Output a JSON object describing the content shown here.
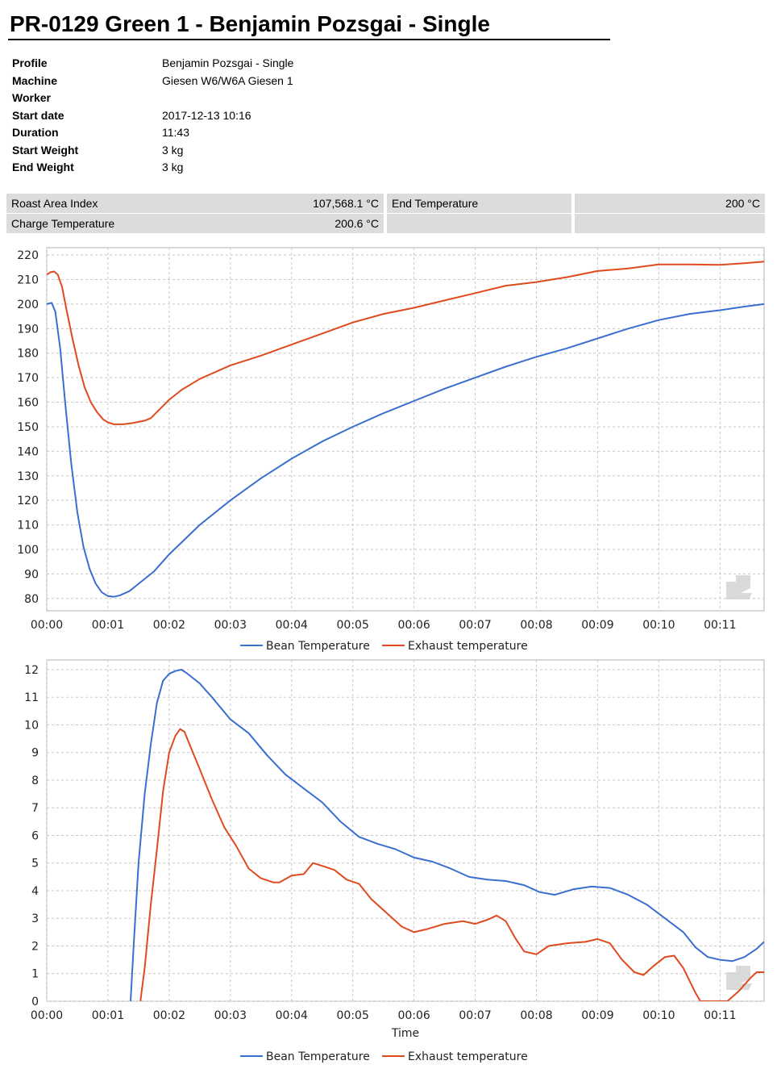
{
  "report": {
    "title": "PR-0129 Green 1 - Benjamin Pozsgai - Single",
    "meta": [
      {
        "key": "Profile",
        "value": "Benjamin Pozsgai - Single"
      },
      {
        "key": "Machine",
        "value": "Giesen W6/W6A Giesen 1"
      },
      {
        "key": "Worker",
        "value": ""
      },
      {
        "key": "Start date",
        "value": "2017-12-13 10:16"
      },
      {
        "key": "Duration",
        "value": "11:43"
      },
      {
        "key": "Start Weight",
        "value": "3 kg"
      },
      {
        "key": "End Weight",
        "value": "3 kg"
      }
    ],
    "stats": {
      "roast_area_index_label": "Roast Area Index",
      "roast_area_index_value": "107,568.1 °C",
      "end_temperature_label": "End Temperature",
      "end_temperature_value": "200 °C",
      "charge_temperature_label": "Charge Temperature",
      "charge_temperature_value": "200.6 °C"
    }
  },
  "colors": {
    "bean": "#3a6fd0",
    "exhaust": "#e04a1f",
    "grid": "#c8c8c8"
  },
  "watermark_icon": "roaster-logo-icon",
  "chart_data": [
    {
      "type": "line",
      "xlabel": "",
      "ylabel": "",
      "xlim": [
        0,
        11.72
      ],
      "ylim": [
        75,
        223
      ],
      "x_ticks": [
        0,
        1,
        2,
        3,
        4,
        5,
        6,
        7,
        8,
        9,
        10,
        11
      ],
      "x_tick_labels": [
        "00:00",
        "00:01",
        "00:02",
        "00:03",
        "00:04",
        "00:05",
        "00:06",
        "00:07",
        "00:08",
        "00:09",
        "00:10",
        "00:11"
      ],
      "y_ticks": [
        80,
        90,
        100,
        110,
        120,
        130,
        140,
        150,
        160,
        170,
        180,
        190,
        200,
        210,
        220
      ],
      "grid": true,
      "legend": "bottom-center",
      "series": [
        {
          "name": "Bean Temperature",
          "color_key": "bean",
          "points": [
            [
              0,
              200
            ],
            [
              0.08,
              200.5
            ],
            [
              0.14,
              197
            ],
            [
              0.22,
              182
            ],
            [
              0.3,
              160
            ],
            [
              0.4,
              135
            ],
            [
              0.5,
              115
            ],
            [
              0.6,
              101
            ],
            [
              0.7,
              92
            ],
            [
              0.8,
              86
            ],
            [
              0.9,
              82.5
            ],
            [
              1.0,
              81
            ],
            [
              1.1,
              80.7
            ],
            [
              1.2,
              81.3
            ],
            [
              1.35,
              83
            ],
            [
              1.5,
              86
            ],
            [
              1.75,
              91
            ],
            [
              2.0,
              98
            ],
            [
              2.5,
              110
            ],
            [
              3.0,
              120
            ],
            [
              3.5,
              129
            ],
            [
              4.0,
              137
            ],
            [
              4.5,
              144
            ],
            [
              5.0,
              150
            ],
            [
              5.5,
              155.5
            ],
            [
              6.0,
              160.5
            ],
            [
              6.5,
              165.5
            ],
            [
              7.0,
              170
            ],
            [
              7.5,
              174.5
            ],
            [
              8.0,
              178.5
            ],
            [
              8.5,
              182
            ],
            [
              9.0,
              186
            ],
            [
              9.5,
              190
            ],
            [
              10.0,
              193.5
            ],
            [
              10.5,
              196
            ],
            [
              11.0,
              197.5
            ],
            [
              11.4,
              199
            ],
            [
              11.72,
              200
            ]
          ]
        },
        {
          "name": "Exhaust temperature",
          "color_key": "exhaust",
          "points": [
            [
              0,
              212
            ],
            [
              0.06,
              213
            ],
            [
              0.12,
              213.3
            ],
            [
              0.18,
              212
            ],
            [
              0.25,
              207
            ],
            [
              0.32,
              198
            ],
            [
              0.42,
              186
            ],
            [
              0.52,
              175
            ],
            [
              0.62,
              166
            ],
            [
              0.72,
              160
            ],
            [
              0.82,
              156
            ],
            [
              0.92,
              153
            ],
            [
              1.0,
              151.8
            ],
            [
              1.1,
              151
            ],
            [
              1.25,
              151
            ],
            [
              1.4,
              151.5
            ],
            [
              1.6,
              152.5
            ],
            [
              1.7,
              153.5
            ],
            [
              1.8,
              156
            ],
            [
              2.0,
              161
            ],
            [
              2.2,
              165
            ],
            [
              2.5,
              169.5
            ],
            [
              3.0,
              175
            ],
            [
              3.5,
              179
            ],
            [
              4.0,
              183.5
            ],
            [
              4.5,
              188
            ],
            [
              5.0,
              192.5
            ],
            [
              5.5,
              196
            ],
            [
              6.0,
              198.5
            ],
            [
              6.5,
              201.5
            ],
            [
              7.0,
              204.5
            ],
            [
              7.5,
              207.5
            ],
            [
              8.0,
              209
            ],
            [
              8.5,
              211
            ],
            [
              9.0,
              213.5
            ],
            [
              9.5,
              214.5
            ],
            [
              10.0,
              216.2
            ],
            [
              10.5,
              216.2
            ],
            [
              11.0,
              216
            ],
            [
              11.4,
              216.7
            ],
            [
              11.72,
              217.3
            ]
          ]
        }
      ]
    },
    {
      "type": "line",
      "xlabel": "Time",
      "ylabel": "",
      "xlim": [
        0,
        11.72
      ],
      "ylim": [
        0,
        12.35
      ],
      "x_ticks": [
        0,
        1,
        2,
        3,
        4,
        5,
        6,
        7,
        8,
        9,
        10,
        11
      ],
      "x_tick_labels": [
        "00:00",
        "00:01",
        "00:02",
        "00:03",
        "00:04",
        "00:05",
        "00:06",
        "00:07",
        "00:08",
        "00:09",
        "00:10",
        "00:11"
      ],
      "y_ticks": [
        0,
        1,
        2,
        3,
        4,
        5,
        6,
        7,
        8,
        9,
        10,
        11,
        12
      ],
      "grid": true,
      "legend": "bottom-center",
      "series": [
        {
          "name": "Bean Temperature",
          "color_key": "bean",
          "points": [
            [
              1.37,
              0
            ],
            [
              1.42,
              2
            ],
            [
              1.5,
              5
            ],
            [
              1.6,
              7.5
            ],
            [
              1.7,
              9.3
            ],
            [
              1.8,
              10.8
            ],
            [
              1.9,
              11.6
            ],
            [
              2.0,
              11.85
            ],
            [
              2.1,
              11.95
            ],
            [
              2.2,
              12.0
            ],
            [
              2.3,
              11.85
            ],
            [
              2.5,
              11.5
            ],
            [
              2.7,
              11.0
            ],
            [
              3.0,
              10.2
            ],
            [
              3.3,
              9.7
            ],
            [
              3.6,
              8.9
            ],
            [
              3.9,
              8.2
            ],
            [
              4.2,
              7.7
            ],
            [
              4.5,
              7.2
            ],
            [
              4.8,
              6.5
            ],
            [
              5.1,
              5.95
            ],
            [
              5.4,
              5.7
            ],
            [
              5.7,
              5.5
            ],
            [
              6.0,
              5.2
            ],
            [
              6.3,
              5.05
            ],
            [
              6.6,
              4.8
            ],
            [
              6.9,
              4.5
            ],
            [
              7.2,
              4.4
            ],
            [
              7.5,
              4.35
            ],
            [
              7.8,
              4.2
            ],
            [
              8.05,
              3.95
            ],
            [
              8.3,
              3.85
            ],
            [
              8.6,
              4.05
            ],
            [
              8.9,
              4.15
            ],
            [
              9.2,
              4.1
            ],
            [
              9.5,
              3.85
            ],
            [
              9.8,
              3.5
            ],
            [
              10.1,
              3.0
            ],
            [
              10.4,
              2.5
            ],
            [
              10.6,
              1.95
            ],
            [
              10.8,
              1.6
            ],
            [
              11.0,
              1.5
            ],
            [
              11.2,
              1.45
            ],
            [
              11.4,
              1.6
            ],
            [
              11.6,
              1.9
            ],
            [
              11.72,
              2.15
            ]
          ]
        },
        {
          "name": "Exhaust temperature",
          "color_key": "exhaust",
          "points": [
            [
              1.53,
              0
            ],
            [
              1.6,
              1.2
            ],
            [
              1.7,
              3.5
            ],
            [
              1.8,
              5.5
            ],
            [
              1.9,
              7.6
            ],
            [
              2.0,
              9.0
            ],
            [
              2.1,
              9.6
            ],
            [
              2.18,
              9.85
            ],
            [
              2.25,
              9.75
            ],
            [
              2.35,
              9.2
            ],
            [
              2.5,
              8.4
            ],
            [
              2.7,
              7.3
            ],
            [
              2.9,
              6.3
            ],
            [
              3.1,
              5.6
            ],
            [
              3.3,
              4.8
            ],
            [
              3.5,
              4.45
            ],
            [
              3.7,
              4.3
            ],
            [
              3.8,
              4.3
            ],
            [
              4.0,
              4.55
            ],
            [
              4.2,
              4.6
            ],
            [
              4.35,
              5.0
            ],
            [
              4.5,
              4.9
            ],
            [
              4.7,
              4.75
            ],
            [
              4.9,
              4.4
            ],
            [
              5.1,
              4.25
            ],
            [
              5.3,
              3.7
            ],
            [
              5.5,
              3.3
            ],
            [
              5.8,
              2.7
            ],
            [
              6.0,
              2.5
            ],
            [
              6.2,
              2.6
            ],
            [
              6.5,
              2.8
            ],
            [
              6.8,
              2.9
            ],
            [
              7.0,
              2.8
            ],
            [
              7.2,
              2.95
            ],
            [
              7.35,
              3.1
            ],
            [
              7.5,
              2.9
            ],
            [
              7.65,
              2.3
            ],
            [
              7.8,
              1.8
            ],
            [
              8.0,
              1.7
            ],
            [
              8.2,
              2.0
            ],
            [
              8.5,
              2.1
            ],
            [
              8.8,
              2.15
            ],
            [
              9.0,
              2.25
            ],
            [
              9.2,
              2.1
            ],
            [
              9.4,
              1.5
            ],
            [
              9.6,
              1.05
            ],
            [
              9.75,
              0.95
            ],
            [
              9.9,
              1.25
            ],
            [
              10.1,
              1.6
            ],
            [
              10.25,
              1.65
            ],
            [
              10.4,
              1.2
            ],
            [
              10.6,
              0.3
            ],
            [
              10.68,
              0
            ],
            [
              11.12,
              0
            ],
            [
              11.3,
              0.35
            ],
            [
              11.5,
              0.85
            ],
            [
              11.6,
              1.05
            ],
            [
              11.72,
              1.05
            ]
          ]
        }
      ]
    }
  ]
}
